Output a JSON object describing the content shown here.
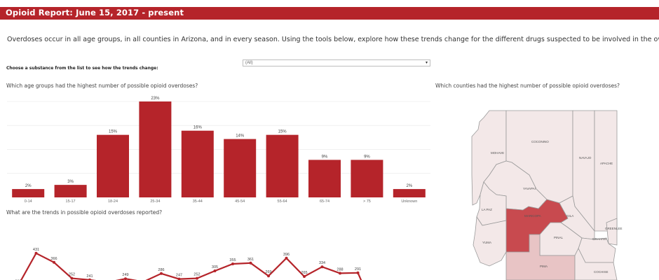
{
  "header": {
    "title": "Opioid Report: June 15, 2017 - present"
  },
  "intro": {
    "text": "Overdoses occur in all age groups, in all counties in Arizona, and in every season. Using the tools below, explore how these trends change for the different drugs suspected to be involved in the overdose."
  },
  "filter": {
    "label": "Choose a substance from the list to see how the trends change:",
    "selected": "(All)"
  },
  "age_chart": {
    "question": "Which age groups had the highest number of possible opioid overdoses?"
  },
  "trend_chart": {
    "question": "What are the trends in possible opioid overdoses reported?"
  },
  "county_map": {
    "question": "Which counties had the highest number of possible opioid overdoses?",
    "counties": [
      {
        "name": "MOHAVE",
        "fill": "#f3e8e8"
      },
      {
        "name": "COCONINO",
        "fill": "#f3e8e8"
      },
      {
        "name": "NAVAJO",
        "fill": "#f3e8e8"
      },
      {
        "name": "APACHE",
        "fill": "#f3e8e8"
      },
      {
        "name": "YAVAPAI",
        "fill": "#f3e8e8"
      },
      {
        "name": "LA PAZ",
        "fill": "#f3e8e8"
      },
      {
        "name": "MARICOPA",
        "fill": "#c84a4f"
      },
      {
        "name": "GILA",
        "fill": "#f3e8e8"
      },
      {
        "name": "GREENLEE",
        "fill": "#f3e8e8"
      },
      {
        "name": "GRAHAM",
        "fill": "#f3e8e8"
      },
      {
        "name": "PINAL",
        "fill": "#f3e8e8"
      },
      {
        "name": "YUMA",
        "fill": "#f3e8e8"
      },
      {
        "name": "PIMA",
        "fill": "#e8c4c5"
      },
      {
        "name": "COCHISE",
        "fill": "#f3e8e8"
      }
    ]
  },
  "chart_data": [
    {
      "type": "bar",
      "categories": [
        "0-14",
        "15-17",
        "18-24",
        "25-34",
        "35-44",
        "45-54",
        "55-64",
        "65-74",
        "> 75",
        "Unknown"
      ],
      "values": [
        2,
        3,
        15,
        23,
        16,
        14,
        15,
        9,
        9,
        2
      ],
      "data_labels": [
        "2%",
        "3%",
        "15%",
        "23%",
        "16%",
        "14%",
        "15%",
        "9%",
        "9%",
        "2%"
      ],
      "ylim": [
        0,
        23
      ],
      "grid": true,
      "color": "#b5242a"
    },
    {
      "type": "line",
      "values": [
        202,
        431,
        366,
        252,
        241,
        223,
        249,
        227,
        286,
        247,
        252,
        305,
        355,
        361,
        269,
        396,
        265,
        334,
        288,
        291
      ],
      "data_labels": [
        "202",
        "431",
        "366",
        "252",
        "241",
        "",
        "249",
        "",
        "286",
        "247",
        "252",
        "305",
        "355",
        "361",
        "269",
        "396",
        "265",
        "334",
        "288",
        "291"
      ],
      "ylim": [
        150,
        650
      ],
      "color": "#b5242a"
    }
  ]
}
